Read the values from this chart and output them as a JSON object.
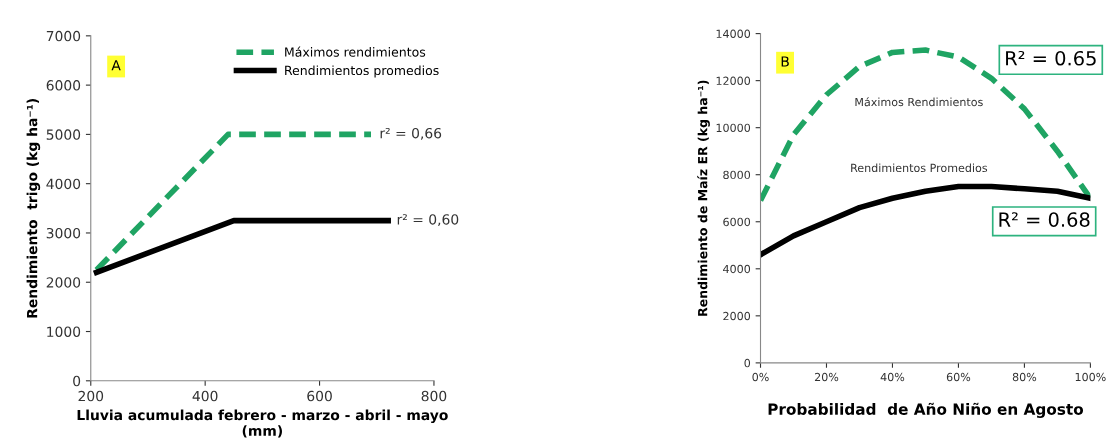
{
  "chart_data": [
    {
      "type": "line",
      "xlabel": "Lluvia acumulada febrero - marzo - abril - mayo\n(mm)",
      "ylabel": "Rendimiento  trigo (kg ha⁻¹)",
      "xlim": [
        200,
        800
      ],
      "xticks": [
        200,
        400,
        600,
        800
      ],
      "ylim": [
        0,
        7000
      ],
      "yticks": [
        0,
        1000,
        2000,
        3000,
        4000,
        5000,
        6000,
        7000
      ],
      "grid": false,
      "legend": "top",
      "marker": "none",
      "annotations": [
        "A",
        {
          "text": "r² = 0,66",
          "x": 690,
          "y": 5000
        },
        {
          "text": "r² = 0,60",
          "x": 720,
          "y": 3250
        }
      ],
      "series": [
        {
          "name": "Máximos rendimientos",
          "color": "#1fa463",
          "line_style": "dashed",
          "x": [
            210,
            440,
            690
          ],
          "values": [
            2250,
            5000,
            5000
          ]
        },
        {
          "name": "Rendimientos promedios",
          "color": "#000000",
          "line_style": "solid",
          "x": [
            210,
            450,
            720
          ],
          "values": [
            2200,
            3250,
            3250
          ]
        }
      ]
    },
    {
      "type": "line",
      "xlabel": "Probabilidad  de Año Niño en Agosto",
      "ylabel": "Rendimiento de Maíz ER (kg ha⁻¹)",
      "xlim": [
        0,
        100
      ],
      "xticks": [
        {
          "value": 0,
          "label": "0%"
        },
        {
          "value": 20,
          "label": "20%"
        },
        {
          "value": 40,
          "label": "40%"
        },
        {
          "value": 60,
          "label": "60%"
        },
        {
          "value": 80,
          "label": "80%"
        },
        {
          "value": 100,
          "label": "100%"
        }
      ],
      "ylim": [
        0,
        14000
      ],
      "yticks": [
        0,
        2000,
        4000,
        6000,
        8000,
        10000,
        12000,
        14000
      ],
      "grid": false,
      "legend": false,
      "marker": "none",
      "annotations": [
        "B",
        "R² = 0.65",
        "R² = 0.68"
      ],
      "x": [
        0,
        10,
        20,
        30,
        40,
        50,
        60,
        70,
        80,
        90,
        100
      ],
      "series": [
        {
          "name": "Máximos Rendimientos",
          "color": "#1fa463",
          "line_style": "dashed",
          "values": [
            6900,
            9700,
            11400,
            12600,
            13200,
            13300,
            13000,
            12100,
            10800,
            9000,
            7000
          ]
        },
        {
          "name": "Rendimientos Promedios",
          "color": "#000000",
          "line_style": "solid",
          "values": [
            4600,
            5400,
            6000,
            6600,
            7000,
            7300,
            7500,
            7500,
            7400,
            7300,
            7000
          ]
        }
      ]
    }
  ]
}
